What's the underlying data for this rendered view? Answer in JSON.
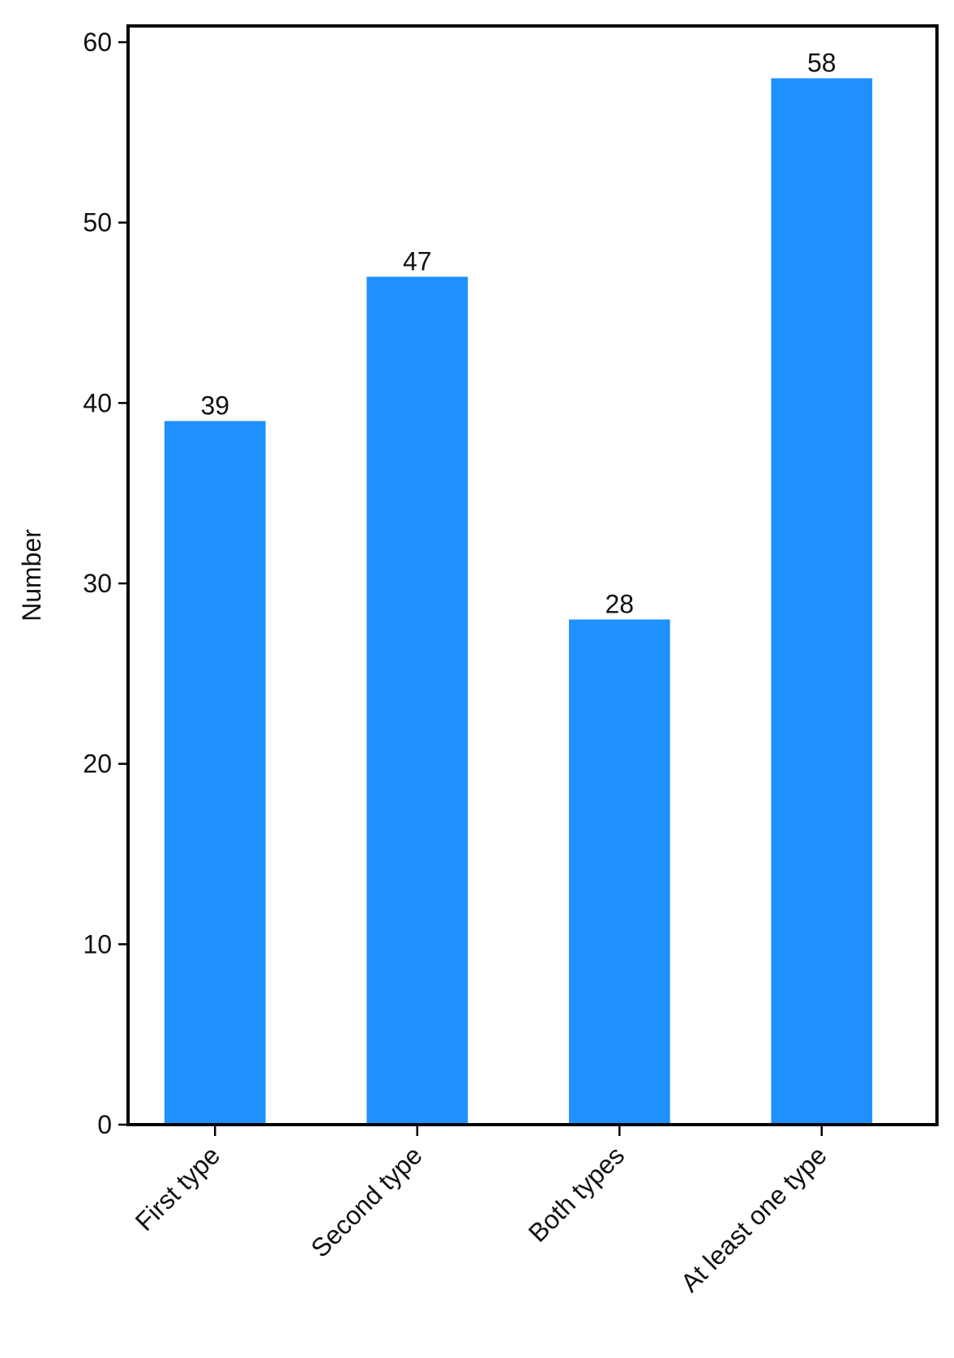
{
  "chart_data": {
    "type": "bar",
    "y_label": "Number",
    "categories": [
      "First type",
      "Second type",
      "Both types",
      "At least one type"
    ],
    "values": [
      39,
      47,
      28,
      58
    ],
    "color": "#1e90ff",
    "ylim": [
      0,
      60.9
    ],
    "yticks": [
      0,
      10,
      20,
      30,
      40,
      50,
      60
    ],
    "grid": false
  }
}
